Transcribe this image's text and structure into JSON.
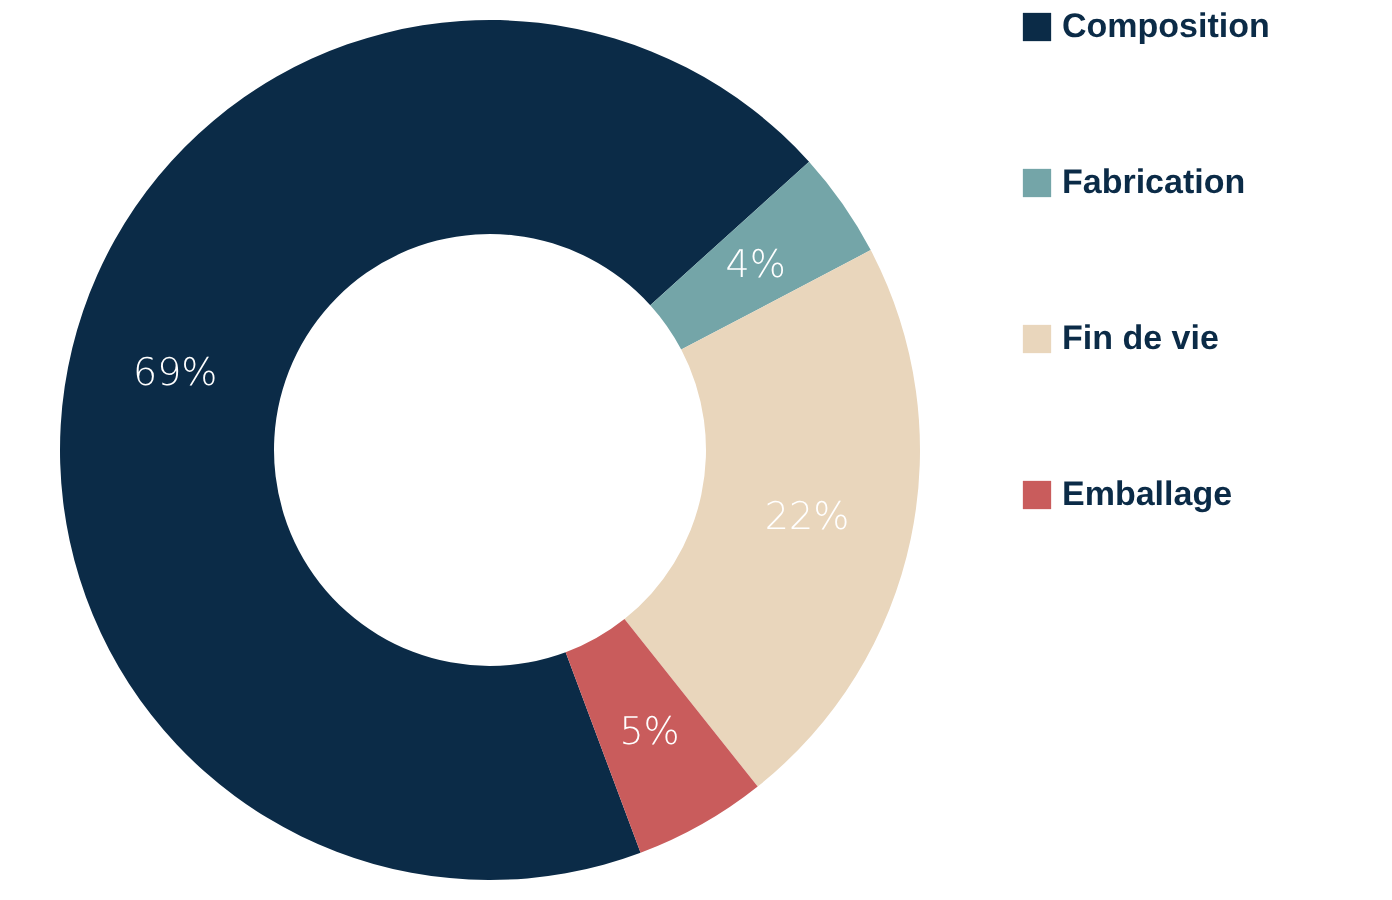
{
  "chart_data": {
    "type": "donut",
    "categories": [
      "Composition",
      "Fabrication",
      "Fin de vie",
      "Emballage"
    ],
    "values": [
      69,
      4,
      22,
      5
    ],
    "colors": [
      "#0b2b47",
      "#74a5a8",
      "#e9d6bc",
      "#c95c5c"
    ],
    "value_labels": [
      "69%",
      "4%",
      "22%",
      "5%"
    ],
    "legend": "right"
  }
}
